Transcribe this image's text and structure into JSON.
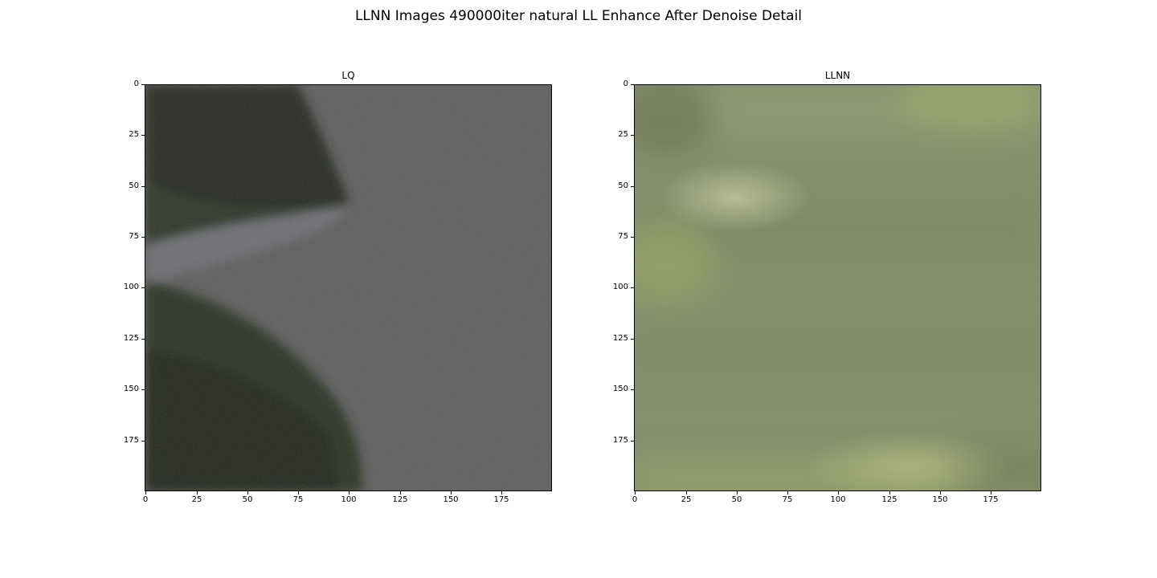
{
  "figure": {
    "suptitle": "LLNN Images 490000iter natural LL Enhance After Denoise Detail"
  },
  "panels": [
    {
      "title": "LQ",
      "xticks": [
        "0",
        "25",
        "50",
        "75",
        "100",
        "125",
        "150",
        "175"
      ],
      "yticks": [
        "0",
        "25",
        "50",
        "75",
        "100",
        "125",
        "150",
        "175"
      ]
    },
    {
      "title": "LLNN",
      "xticks": [
        "0",
        "25",
        "50",
        "75",
        "100",
        "125",
        "150",
        "175"
      ],
      "yticks": [
        "0",
        "25",
        "50",
        "75",
        "100",
        "125",
        "150",
        "175"
      ]
    }
  ],
  "colors": {
    "lq_gray": "#5c5d5d",
    "lq_dark": "#262b20",
    "llnn_base": "#86906c",
    "llnn_highlight": "#b2ba8e"
  }
}
